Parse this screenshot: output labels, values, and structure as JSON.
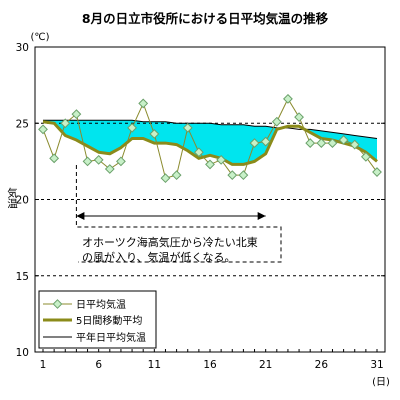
{
  "chart_data": {
    "type": "line",
    "title": "8月の日立市役所における日平均気温の推移",
    "ylabel": "気温",
    "yunit": "(℃)",
    "xunit": "(日)",
    "ylim": [
      10,
      30
    ],
    "xlim": [
      1,
      31
    ],
    "yticks": [
      10,
      15,
      20,
      25,
      30
    ],
    "xticks": [
      1,
      6,
      11,
      16,
      21,
      26,
      31
    ],
    "grid_y": [
      15,
      20,
      25
    ],
    "fill_color": "#00e5ee",
    "annotation": "オホーツク海高気圧から冷たい北東\nの風が入り、気温が低くなる。",
    "annotation_range": [
      4,
      21
    ],
    "legend_position": "bottom-left",
    "series": [
      {
        "name": "日平均気温",
        "color": "#8b8b2e",
        "marker_fill": "#c8f0c8",
        "marker_edge": "#6aa06a",
        "x": [
          1,
          2,
          3,
          4,
          5,
          6,
          7,
          8,
          9,
          10,
          11,
          12,
          13,
          14,
          15,
          16,
          17,
          18,
          19,
          20,
          21,
          22,
          23,
          24,
          25,
          26,
          27,
          28,
          29,
          30,
          31
        ],
        "values": [
          24.6,
          22.7,
          25.0,
          25.6,
          22.5,
          22.6,
          22.0,
          22.5,
          24.7,
          26.3,
          24.3,
          21.4,
          21.6,
          24.7,
          23.1,
          22.3,
          22.6,
          21.6,
          21.6,
          23.7,
          23.8,
          25.1,
          26.6,
          25.4,
          23.7,
          23.7,
          23.7,
          23.9,
          23.6,
          22.8,
          21.8
        ]
      },
      {
        "name": "5日間移動平均",
        "color": "#8b8b1a",
        "x": [
          1,
          2,
          3,
          4,
          5,
          6,
          7,
          8,
          9,
          10,
          11,
          12,
          13,
          14,
          15,
          16,
          17,
          18,
          19,
          20,
          21,
          22,
          23,
          24,
          25,
          26,
          27,
          28,
          29,
          30,
          31
        ],
        "values": [
          25.1,
          25.0,
          24.2,
          23.9,
          23.5,
          23.1,
          23.0,
          23.4,
          24.0,
          24.0,
          23.7,
          23.7,
          23.6,
          23.2,
          22.7,
          22.9,
          22.7,
          22.3,
          22.3,
          22.5,
          23.0,
          24.6,
          24.8,
          24.8,
          24.4,
          24.0,
          23.9,
          23.7,
          23.5,
          23.1,
          22.5
        ]
      },
      {
        "name": "平年日平均気温",
        "color": "#000000",
        "x": [
          1,
          2,
          3,
          4,
          5,
          6,
          7,
          8,
          9,
          10,
          11,
          12,
          13,
          14,
          15,
          16,
          17,
          18,
          19,
          20,
          21,
          22,
          23,
          24,
          25,
          26,
          27,
          28,
          29,
          30,
          31
        ],
        "values": [
          25.2,
          25.2,
          25.2,
          25.2,
          25.2,
          25.2,
          25.2,
          25.2,
          25.2,
          25.1,
          25.1,
          25.1,
          25.0,
          25.0,
          25.0,
          25.0,
          24.9,
          24.9,
          24.9,
          24.8,
          24.8,
          24.7,
          24.7,
          24.6,
          24.6,
          24.5,
          24.4,
          24.3,
          24.2,
          24.1,
          24.0
        ]
      }
    ]
  }
}
